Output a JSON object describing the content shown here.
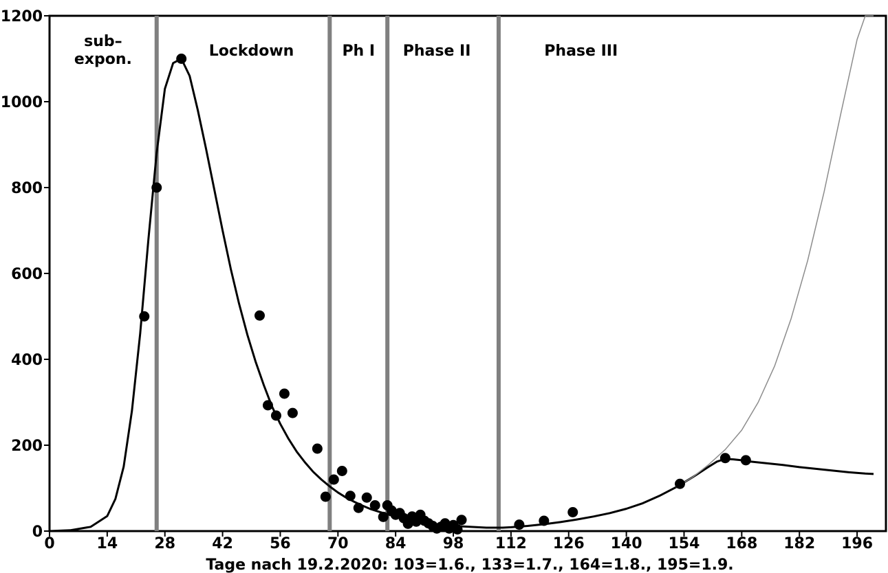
{
  "chart_data": {
    "type": "scatter",
    "title": "",
    "xlabel": "Tage nach 19.2.2020: 103=1.6., 133=1.7., 164=1.8., 195=1.9.",
    "ylabel": "",
    "xlim": [
      0,
      203
    ],
    "ylim": [
      0,
      1200
    ],
    "x_ticks": [
      0,
      14,
      28,
      42,
      56,
      70,
      84,
      98,
      112,
      126,
      140,
      154,
      168,
      182,
      196
    ],
    "y_ticks": [
      0,
      200,
      400,
      600,
      800,
      1000,
      1200
    ],
    "grid": false,
    "phase_boundaries": [
      26,
      68,
      82,
      109
    ],
    "phases": [
      {
        "label_lines": [
          "sub–",
          "expon."
        ],
        "x_center": 13
      },
      {
        "label_lines": [
          "Lockdown"
        ],
        "x_center": 49
      },
      {
        "label_lines": [
          "Ph I"
        ],
        "x_center": 75
      },
      {
        "label_lines": [
          "Phase II"
        ],
        "x_center": 94
      },
      {
        "label_lines": [
          "Phase III"
        ],
        "x_center": 129
      }
    ],
    "points": [
      [
        23,
        500
      ],
      [
        26,
        800
      ],
      [
        32,
        1100
      ],
      [
        51,
        502
      ],
      [
        53,
        293
      ],
      [
        55,
        269
      ],
      [
        57,
        320
      ],
      [
        59,
        275
      ],
      [
        65,
        192
      ],
      [
        67,
        80
      ],
      [
        69,
        120
      ],
      [
        71,
        140
      ],
      [
        73,
        82
      ],
      [
        75,
        54
      ],
      [
        77,
        78
      ],
      [
        79,
        60
      ],
      [
        81,
        33
      ],
      [
        82,
        60
      ],
      [
        83,
        48
      ],
      [
        84,
        38
      ],
      [
        85,
        42
      ],
      [
        86,
        30
      ],
      [
        87,
        17
      ],
      [
        88,
        34
      ],
      [
        89,
        22
      ],
      [
        90,
        38
      ],
      [
        91,
        24
      ],
      [
        92,
        18
      ],
      [
        93,
        12
      ],
      [
        94,
        6
      ],
      [
        95,
        10
      ],
      [
        96,
        18
      ],
      [
        97,
        6
      ],
      [
        98,
        14
      ],
      [
        99,
        4
      ],
      [
        100,
        26
      ],
      [
        114,
        15
      ],
      [
        120,
        24
      ],
      [
        127,
        44
      ],
      [
        153,
        110
      ],
      [
        164,
        170
      ],
      [
        169,
        165
      ]
    ],
    "series": [
      {
        "style": "thick-black",
        "x": [
          0,
          5,
          10,
          14,
          16,
          18,
          20,
          22,
          24,
          26,
          28,
          30,
          32,
          34,
          36,
          38,
          40,
          42,
          44,
          46,
          48,
          50,
          52,
          54,
          56,
          58,
          60,
          62,
          64,
          66,
          68,
          70,
          72,
          74,
          76,
          78,
          80,
          82,
          84,
          86,
          88,
          90,
          92,
          94,
          96,
          98,
          100,
          102,
          104,
          106,
          108,
          110,
          112,
          116,
          120,
          124,
          128,
          132,
          136,
          140,
          144,
          148,
          152,
          156,
          160,
          162,
          164,
          166,
          168,
          170,
          174,
          178,
          182,
          186,
          190,
          194,
          198,
          200
        ],
        "y": [
          0,
          2,
          10,
          35,
          75,
          150,
          280,
          460,
          680,
          880,
          1030,
          1090,
          1100,
          1060,
          980,
          890,
          795,
          700,
          610,
          530,
          458,
          395,
          340,
          290,
          250,
          215,
          185,
          160,
          138,
          120,
          104,
          90,
          78,
          68,
          59,
          51,
          45,
          39,
          34,
          30,
          26,
          22,
          19,
          16,
          14,
          12,
          11,
          10,
          9,
          8,
          8,
          8,
          9,
          12,
          16,
          21,
          27,
          34,
          42,
          52,
          65,
          82,
          102,
          125,
          150,
          162,
          168,
          167,
          165,
          162,
          158,
          154,
          149,
          145,
          141,
          137,
          134,
          133
        ]
      },
      {
        "style": "thin-gray",
        "x": [
          152,
          156,
          160,
          164,
          168,
          172,
          176,
          180,
          184,
          188,
          192,
          196,
          198,
          200
        ],
        "y": [
          102,
          125,
          155,
          190,
          235,
          300,
          385,
          495,
          630,
          790,
          970,
          1145,
          1200,
          1210
        ]
      }
    ]
  }
}
